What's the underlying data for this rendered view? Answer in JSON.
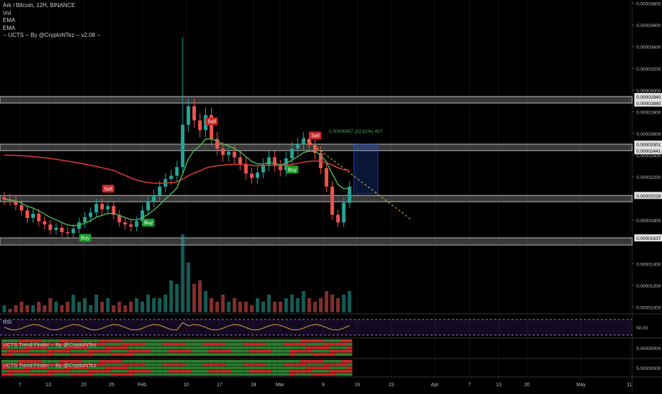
{
  "legend": {
    "symbol": "Ark / Bitcoin, 12H, BINANCE",
    "vol": "Vol",
    "ema1": "EMA",
    "ema2": "EMA",
    "ucts": "-- UCTS -- By @CryptoNTez -- v2.08 --"
  },
  "panes": {
    "rsi_label": "RSI",
    "rsi_value": "50.00",
    "trend1_label": "UCTS Trend Finder -- By @CryptoNTez",
    "trend1_value": "5.00000000",
    "trend2_label": "UCTS Trend Finder -- By @CryptoNTez",
    "trend2_value": "5.00000000"
  },
  "measure_label": "0.00000457 (22.61%) 457",
  "chart_data": {
    "type": "candlestick",
    "title": "",
    "x_tick_labels": [
      "7",
      "13",
      "20",
      "26",
      "Feb",
      "10",
      "17",
      "24",
      "Mar",
      "9",
      "16",
      "23",
      "Apr",
      "7",
      "13",
      "20",
      "May",
      "11"
    ],
    "y_tick_labels": [
      "0.00003800",
      "0.00003600",
      "0.00003400",
      "0.00003200",
      "0.00003000",
      "0.00002800",
      "0.00002600",
      "0.00002400",
      "0.00002200",
      "0.00001800",
      "0.00001400",
      "0.00001200",
      "0.00001000"
    ],
    "ylim": [
      9.5e-06,
      3.83e-05
    ],
    "price_tags": [
      "0.00002940",
      "0.00002880",
      "0.00002501",
      "0.00002441",
      "0.00002028",
      "0.00001637"
    ],
    "zones": [
      {
        "low": 2.88e-05,
        "high": 2.94e-05
      },
      {
        "low": 2.441e-05,
        "high": 2.501e-05
      },
      {
        "low": 1.97e-05,
        "high": 2.028e-05
      },
      {
        "low": 1.571e-05,
        "high": 1.637e-05
      }
    ],
    "signals": [
      {
        "label": "Buy",
        "index": 14,
        "kind": "buy"
      },
      {
        "label": "Sell",
        "index": 18,
        "kind": "sell"
      },
      {
        "label": "Buy",
        "index": 25,
        "kind": "buy"
      },
      {
        "label": "Sell",
        "index": 36,
        "kind": "sell"
      },
      {
        "label": "Buy",
        "index": 50,
        "kind": "buy"
      },
      {
        "label": "Sell",
        "index": 54,
        "kind": "sell"
      }
    ],
    "closes": [
      1.99e-05,
      1.98e-05,
      1.94e-05,
      1.89e-05,
      1.82e-05,
      1.86e-05,
      1.79e-05,
      1.76e-05,
      1.71e-05,
      1.73e-05,
      1.69e-05,
      1.68e-05,
      1.72e-05,
      1.78e-05,
      1.83e-05,
      1.87e-05,
      1.95e-05,
      1.9e-05,
      1.93e-05,
      1.85e-05,
      1.78e-05,
      1.76e-05,
      1.74e-05,
      1.79e-05,
      1.89e-05,
      1.97e-05,
      2.03e-05,
      2.11e-05,
      2.18e-05,
      2.21e-05,
      2.29e-05,
      2.68e-05,
      2.85e-05,
      2.72e-05,
      2.63e-05,
      2.77e-05,
      2.55e-05,
      2.46e-05,
      2.4e-05,
      2.43e-05,
      2.38e-05,
      2.32e-05,
      2.23e-05,
      2.19e-05,
      2.24e-05,
      2.31e-05,
      2.38e-05,
      2.3e-05,
      2.26e-05,
      2.37e-05,
      2.46e-05,
      2.5e-05,
      2.55e-05,
      2.49e-05,
      2.42e-05,
      2.28e-05,
      2.11e-05,
      1.85e-05,
      1.78e-05,
      1.96e-05,
      2.11e-05
    ],
    "volumes": [
      2,
      1,
      2,
      3,
      2,
      2,
      3,
      2,
      4,
      3,
      2,
      3,
      5,
      3,
      4,
      2,
      5,
      3,
      4,
      2,
      3,
      2,
      3,
      4,
      3,
      5,
      4,
      4,
      5,
      9,
      8,
      22,
      14,
      8,
      9,
      6,
      4,
      3,
      5,
      3,
      4,
      3,
      3,
      2,
      4,
      3,
      5,
      3,
      3,
      4,
      5,
      4,
      6,
      4,
      3,
      4,
      6,
      5,
      4,
      5,
      6
    ]
  }
}
